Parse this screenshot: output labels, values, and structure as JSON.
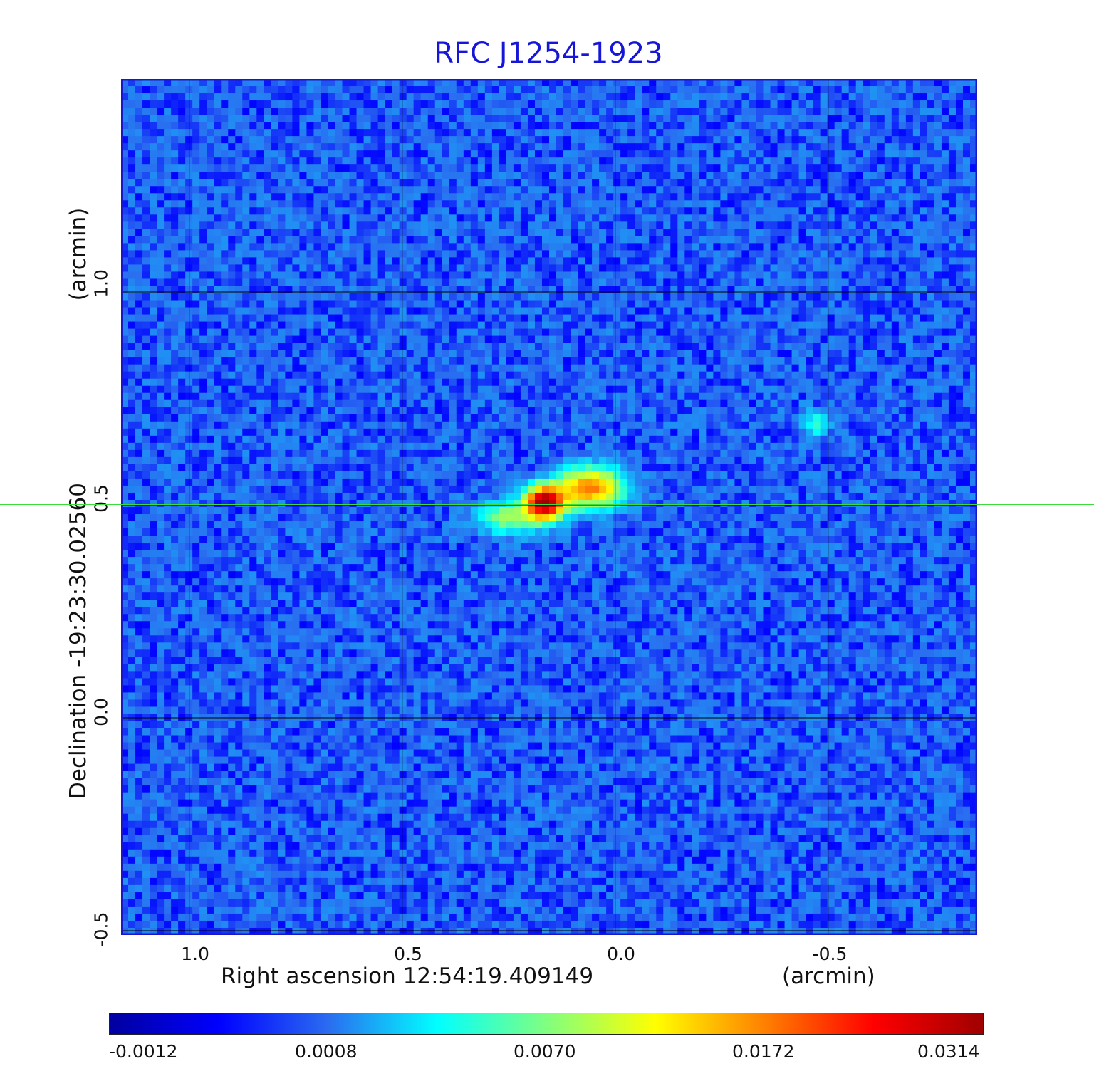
{
  "chart_data": {
    "type": "heatmap",
    "title": "RFC J1254-1923",
    "xlabel": "Right ascension  12:54:19.409149",
    "xunit": "(arcmin)",
    "ylabel": "Declination  -19:23:30.02560",
    "yunit": "(arcmin)",
    "x_range": [
      1.16,
      -0.85
    ],
    "y_range": [
      -0.51,
      1.5
    ],
    "x_ticks": [
      "1.0",
      "0.5",
      "0.0",
      "-0.5"
    ],
    "x_tick_values": [
      1.0,
      0.5,
      0.0,
      -0.5
    ],
    "y_ticks": [
      "-0.5",
      "0.0",
      "0.5",
      "1.0"
    ],
    "y_tick_values": [
      -0.5,
      0.0,
      0.5,
      1.0
    ],
    "grid": true,
    "crosshair": {
      "x": 0.165,
      "y": 0.5,
      "color": "#3ddc3d"
    },
    "colorbar": {
      "ticks": [
        "-0.0012",
        "0.0008",
        "0.0070",
        "0.0172",
        "0.0314"
      ],
      "colors": [
        "#0000a0",
        "#0000ff",
        "#2a6cf0",
        "#00ffff",
        "#80ff80",
        "#ffff00",
        "#ff8000",
        "#ff0000",
        "#a00000"
      ]
    },
    "background_level": 0.0008,
    "sources": [
      {
        "x": 0.165,
        "y": 0.505,
        "peak": 0.0314,
        "sx": 0.03,
        "sy": 0.025
      },
      {
        "x": 0.06,
        "y": 0.54,
        "peak": 0.0172,
        "sx": 0.05,
        "sy": 0.03
      },
      {
        "x": 0.25,
        "y": 0.47,
        "peak": 0.007,
        "sx": 0.05,
        "sy": 0.025
      },
      {
        "x": -0.47,
        "y": 0.69,
        "peak": 0.004,
        "sx": 0.02,
        "sy": 0.02
      }
    ]
  }
}
